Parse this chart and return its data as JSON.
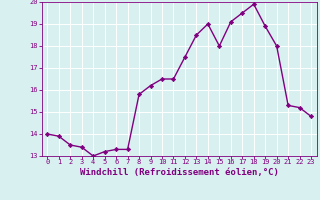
{
  "x": [
    0,
    1,
    2,
    3,
    4,
    5,
    6,
    7,
    8,
    9,
    10,
    11,
    12,
    13,
    14,
    15,
    16,
    17,
    18,
    19,
    20,
    21,
    22,
    23
  ],
  "y": [
    14.0,
    13.9,
    13.5,
    13.4,
    13.0,
    13.2,
    13.3,
    13.3,
    15.8,
    16.2,
    16.5,
    16.5,
    17.5,
    18.5,
    19.0,
    18.0,
    19.1,
    19.5,
    19.9,
    18.9,
    18.0,
    15.3,
    15.2,
    14.8
  ],
  "line_color": "#800080",
  "marker": "D",
  "marker_size": 2.2,
  "bg_color": "#d9f0f0",
  "grid_color": "#b0d8d8",
  "xlabel": "Windchill (Refroidissement éolien,°C)",
  "xlabel_color": "#800080",
  "tick_color": "#800080",
  "spine_color": "#800080",
  "ylim": [
    13,
    20
  ],
  "xlim": [
    -0.5,
    23.5
  ],
  "yticks": [
    13,
    14,
    15,
    16,
    17,
    18,
    19,
    20
  ],
  "xticks": [
    0,
    1,
    2,
    3,
    4,
    5,
    6,
    7,
    8,
    9,
    10,
    11,
    12,
    13,
    14,
    15,
    16,
    17,
    18,
    19,
    20,
    21,
    22,
    23
  ],
  "linewidth": 1.0,
  "tick_fontsize": 5.0,
  "xlabel_fontsize": 6.5
}
